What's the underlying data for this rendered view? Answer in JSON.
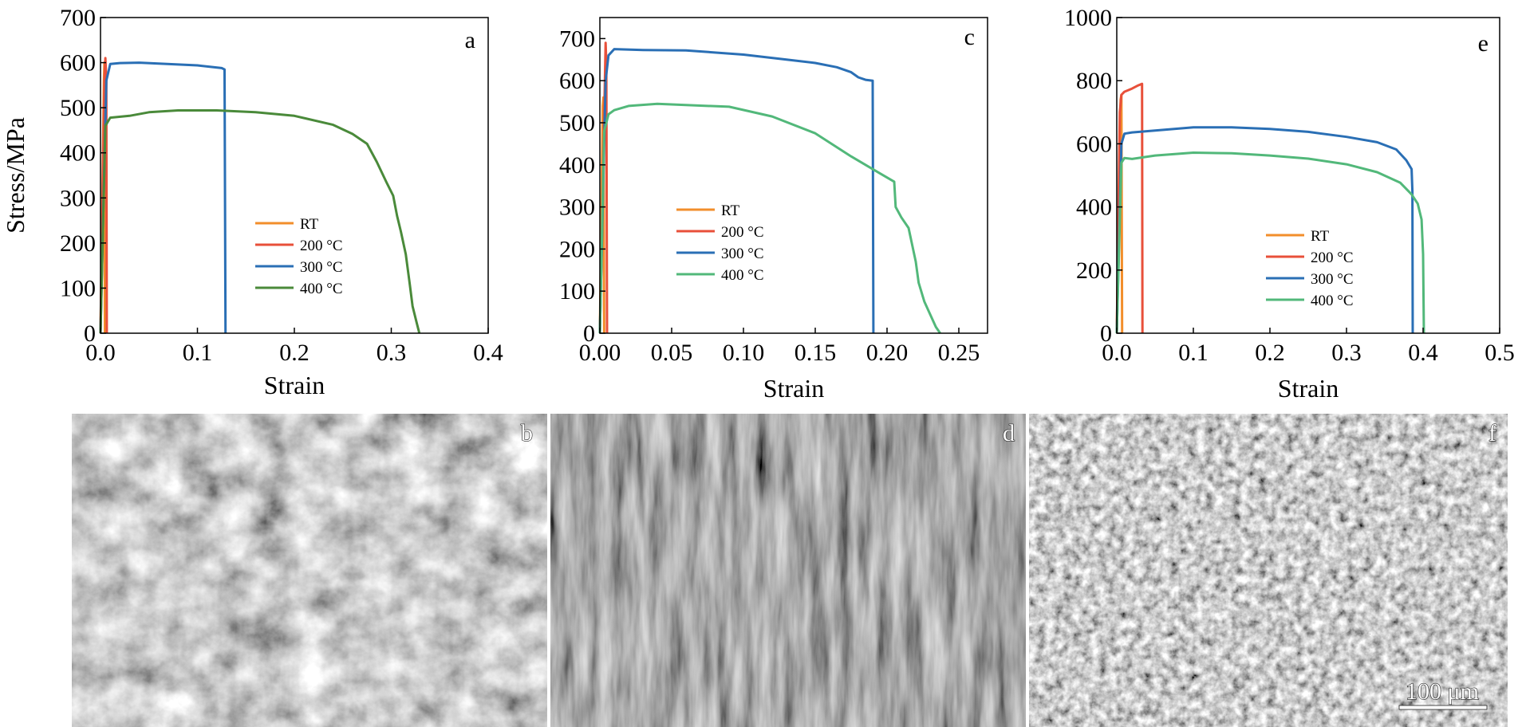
{
  "colors": {
    "RT": "#f28e2b",
    "200": "#e8503a",
    "300": "#2a6fb5",
    "400a": "#4a8a3a",
    "400": "#52b87a"
  },
  "micro_letters": [
    "b",
    "d",
    "f"
  ],
  "scale_bar": {
    "label": "100 μm"
  },
  "chart_data": [
    {
      "type": "line",
      "panel_letter": "a",
      "xlabel": "Strain",
      "ylabel": "Stress/MPa",
      "xlim": [
        0,
        0.4
      ],
      "ylim": [
        0,
        700
      ],
      "xticks": [
        0,
        0.1,
        0.2,
        0.3,
        0.4
      ],
      "yticks": [
        0,
        100,
        200,
        300,
        400,
        500,
        600,
        700
      ],
      "xtick_labels": [
        "0.0",
        "0.1",
        "0.2",
        "0.3",
        "0.4"
      ],
      "ytick_labels": [
        "0",
        "100",
        "200",
        "300",
        "400",
        "500",
        "600",
        "700"
      ],
      "legend": "center-right",
      "series": [
        {
          "name": "RT",
          "color_key": "RT",
          "x": [
            0,
            0.0035,
            0.004,
            0.0045
          ],
          "y": [
            0,
            560,
            600,
            0
          ]
        },
        {
          "name": "200 °C",
          "color_key": "200",
          "x": [
            0,
            0.004,
            0.005,
            0.006,
            0.0065
          ],
          "y": [
            0,
            560,
            610,
            560,
            0
          ]
        },
        {
          "name": "300 °C",
          "color_key": "300",
          "x": [
            0,
            0.006,
            0.01,
            0.02,
            0.04,
            0.06,
            0.1,
            0.125,
            0.128,
            0.129
          ],
          "y": [
            0,
            560,
            597,
            599,
            600,
            598,
            594,
            588,
            585,
            0
          ]
        },
        {
          "name": "400 °C",
          "color_key": "400a",
          "x": [
            0,
            0.005,
            0.01,
            0.03,
            0.05,
            0.08,
            0.12,
            0.16,
            0.2,
            0.24,
            0.26,
            0.275,
            0.285,
            0.295,
            0.302,
            0.306,
            0.31,
            0.315,
            0.319,
            0.322,
            0.326,
            0.329
          ],
          "y": [
            0,
            460,
            478,
            482,
            490,
            494,
            494,
            490,
            482,
            462,
            442,
            420,
            380,
            335,
            305,
            260,
            225,
            175,
            110,
            60,
            25,
            0
          ]
        }
      ]
    },
    {
      "type": "line",
      "panel_letter": "c",
      "xlabel": "Strain",
      "ylabel": "",
      "xlim": [
        0,
        0.27
      ],
      "ylim": [
        0,
        750
      ],
      "xticks": [
        0,
        0.05,
        0.1,
        0.15,
        0.2,
        0.25
      ],
      "yticks": [
        0,
        100,
        200,
        300,
        400,
        500,
        600,
        700
      ],
      "xtick_labels": [
        "0.00",
        "0.05",
        "0.10",
        "0.15",
        "0.20",
        "0.25"
      ],
      "ytick_labels": [
        "0",
        "100",
        "200",
        "300",
        "400",
        "500",
        "600",
        "700"
      ],
      "legend": "center-left",
      "series": [
        {
          "name": "RT",
          "color_key": "RT",
          "x": [
            0,
            0.002,
            0.0025,
            0.003
          ],
          "y": [
            0,
            540,
            560,
            0
          ]
        },
        {
          "name": "200 °C",
          "color_key": "200",
          "x": [
            0,
            0.0035,
            0.004,
            0.0045,
            0.005
          ],
          "y": [
            0,
            600,
            690,
            640,
            0
          ]
        },
        {
          "name": "300 °C",
          "color_key": "300",
          "x": [
            0,
            0.004,
            0.006,
            0.01,
            0.03,
            0.06,
            0.1,
            0.13,
            0.15,
            0.165,
            0.175,
            0.18,
            0.185,
            0.19,
            0.1905
          ],
          "y": [
            0,
            600,
            660,
            675,
            673,
            672,
            662,
            650,
            642,
            632,
            620,
            608,
            602,
            600,
            0
          ]
        },
        {
          "name": "400 °C",
          "color_key": "400",
          "x": [
            0,
            0.003,
            0.006,
            0.01,
            0.02,
            0.04,
            0.06,
            0.09,
            0.12,
            0.15,
            0.175,
            0.195,
            0.205,
            0.206,
            0.21,
            0.215,
            0.22,
            0.222,
            0.226,
            0.23,
            0.234,
            0.237
          ],
          "y": [
            0,
            480,
            520,
            530,
            540,
            545,
            542,
            538,
            515,
            475,
            420,
            380,
            360,
            300,
            275,
            250,
            170,
            120,
            75,
            45,
            15,
            0
          ]
        }
      ]
    },
    {
      "type": "line",
      "panel_letter": "e",
      "xlabel": "Strain",
      "ylabel": "",
      "xlim": [
        0,
        0.5
      ],
      "ylim": [
        0,
        1000
      ],
      "xticks": [
        0,
        0.1,
        0.2,
        0.3,
        0.4,
        0.5
      ],
      "yticks": [
        0,
        200,
        400,
        600,
        800,
        1000
      ],
      "xtick_labels": [
        "0.0",
        "0.1",
        "0.2",
        "0.3",
        "0.4",
        "0.5"
      ],
      "ytick_labels": [
        "0",
        "200",
        "400",
        "600",
        "800",
        "1000"
      ],
      "legend": "center",
      "series": [
        {
          "name": "RT",
          "color_key": "RT",
          "x": [
            0,
            0.005,
            0.006,
            0.007
          ],
          "y": [
            0,
            740,
            755,
            0
          ]
        },
        {
          "name": "200 °C",
          "color_key": "200",
          "x": [
            0,
            0.004,
            0.006,
            0.01,
            0.02,
            0.028,
            0.033,
            0.0335
          ],
          "y": [
            0,
            700,
            755,
            765,
            775,
            785,
            790,
            0
          ]
        },
        {
          "name": "300 °C",
          "color_key": "300",
          "x": [
            0,
            0.006,
            0.01,
            0.02,
            0.05,
            0.1,
            0.15,
            0.2,
            0.25,
            0.3,
            0.34,
            0.365,
            0.378,
            0.385,
            0.386,
            0.3865
          ],
          "y": [
            0,
            600,
            632,
            636,
            642,
            652,
            652,
            647,
            638,
            622,
            605,
            582,
            548,
            520,
            450,
            0
          ]
        },
        {
          "name": "400 °C",
          "color_key": "400",
          "x": [
            0,
            0.006,
            0.01,
            0.02,
            0.05,
            0.1,
            0.15,
            0.2,
            0.25,
            0.3,
            0.34,
            0.37,
            0.385,
            0.393,
            0.398,
            0.4,
            0.401
          ],
          "y": [
            0,
            540,
            555,
            552,
            563,
            572,
            570,
            563,
            553,
            535,
            510,
            477,
            440,
            410,
            360,
            250,
            0
          ]
        }
      ]
    }
  ]
}
